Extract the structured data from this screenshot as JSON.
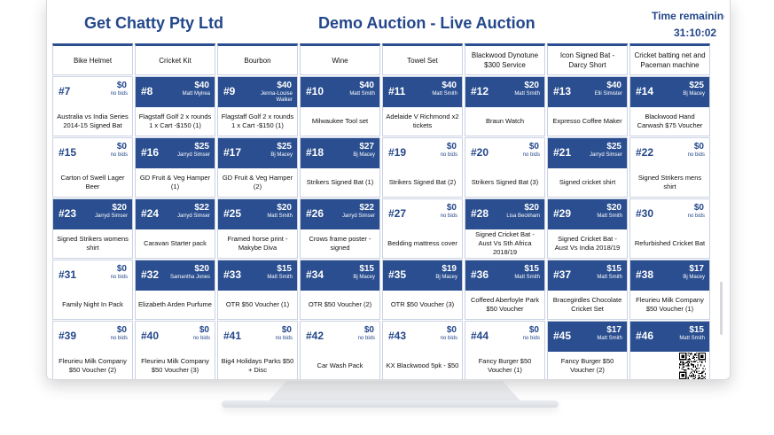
{
  "header": {
    "company": "Get Chatty Pty Ltd",
    "title": "Demo Auction - Live Auction",
    "timer_label": "Time remaining",
    "timer_value": "31:10:02"
  },
  "top_row": [
    "Bike Helmet",
    "Cricket Kit",
    "Bourbon",
    "Wine",
    "Towel Set",
    "Blackwood Dynotune $300 Service",
    "Icon Signed Bat - Darcy Short",
    "Cricket batting net and Paceman machine"
  ],
  "rows": [
    [
      {
        "lot": "#7",
        "amount": "$0",
        "bidder": "no bids",
        "name": "Australia vs India Series 2014-15 Signed Bat",
        "bid": false
      },
      {
        "lot": "#8",
        "amount": "$40",
        "bidder": "Matt Mylrea",
        "name": "Flagstaff Golf 2 x rounds 1 x Cart -$150 (1)",
        "bid": true
      },
      {
        "lot": "#9",
        "amount": "$40",
        "bidder": "Jenna-Louise Walker",
        "name": "Flagstaff Golf 2 x rounds 1 x Cart -$150 (1)",
        "bid": true
      },
      {
        "lot": "#10",
        "amount": "$40",
        "bidder": "Matt Smith",
        "name": "Milwaukee Tool set",
        "bid": true
      },
      {
        "lot": "#11",
        "amount": "$40",
        "bidder": "Matt Smith",
        "name": "Adelaide V Richmond x2 tickets",
        "bid": true
      },
      {
        "lot": "#12",
        "amount": "$20",
        "bidder": "Matt Smith",
        "name": "Braun Watch",
        "bid": true
      },
      {
        "lot": "#13",
        "amount": "$40",
        "bidder": "Elli Simister",
        "name": "Expresso Coffee Maker",
        "bid": true
      },
      {
        "lot": "#14",
        "amount": "$25",
        "bidder": "Bj Macey",
        "name": "Blackwood Hand Carwash $75 Voucher",
        "bid": true
      }
    ],
    [
      {
        "lot": "#15",
        "amount": "$0",
        "bidder": "no bids",
        "name": "Carton of Swell Lager Beer",
        "bid": false
      },
      {
        "lot": "#16",
        "amount": "$25",
        "bidder": "Jarryd Simser",
        "name": "GD Fruit & Veg Hamper (1)",
        "bid": true
      },
      {
        "lot": "#17",
        "amount": "$25",
        "bidder": "Bj Macey",
        "name": "GD Fruit & Veg Hamper (2)",
        "bid": true
      },
      {
        "lot": "#18",
        "amount": "$27",
        "bidder": "Bj Macey",
        "name": "Strikers Signed Bat (1)",
        "bid": true
      },
      {
        "lot": "#19",
        "amount": "$0",
        "bidder": "no bids",
        "name": "Strikers Signed Bat (2)",
        "bid": false
      },
      {
        "lot": "#20",
        "amount": "$0",
        "bidder": "no bids",
        "name": "Strikers Signed Bat (3)",
        "bid": false
      },
      {
        "lot": "#21",
        "amount": "$25",
        "bidder": "Jarryd Simser",
        "name": "Signed cricket shirt",
        "bid": true
      },
      {
        "lot": "#22",
        "amount": "$0",
        "bidder": "no bids",
        "name": "Signed Strikers mens shirt",
        "bid": false
      }
    ],
    [
      {
        "lot": "#23",
        "amount": "$20",
        "bidder": "Jarryd Simser",
        "name": "Signed Strikers womens shirt",
        "bid": true
      },
      {
        "lot": "#24",
        "amount": "$22",
        "bidder": "Jarryd Simser",
        "name": "Caravan Starter pack",
        "bid": true
      },
      {
        "lot": "#25",
        "amount": "$20",
        "bidder": "Matt Smith",
        "name": "Framed horse print - Makybe Diva",
        "bid": true
      },
      {
        "lot": "#26",
        "amount": "$22",
        "bidder": "Jarryd Simser",
        "name": "Crows frame poster - signed",
        "bid": true
      },
      {
        "lot": "#27",
        "amount": "$0",
        "bidder": "no bids",
        "name": "Bedding mattress cover",
        "bid": false
      },
      {
        "lot": "#28",
        "amount": "$20",
        "bidder": "Lisa Beckham",
        "name": "Signed Cricket Bat - Aust Vs Sth Africa 2018/19",
        "bid": true
      },
      {
        "lot": "#29",
        "amount": "$20",
        "bidder": "Matt Smith",
        "name": "Signed Cricket Bat - Aust Vs India 2018/19",
        "bid": true
      },
      {
        "lot": "#30",
        "amount": "$0",
        "bidder": "no bids",
        "name": "Refurbished Cricket Bat",
        "bid": false
      }
    ],
    [
      {
        "lot": "#31",
        "amount": "$0",
        "bidder": "no bids",
        "name": "Family Night In Pack",
        "bid": false
      },
      {
        "lot": "#32",
        "amount": "$20",
        "bidder": "Samantha Jones",
        "name": "Elizabeth Arden Purfume",
        "bid": true
      },
      {
        "lot": "#33",
        "amount": "$15",
        "bidder": "Matt Smith",
        "name": "OTR $50 Voucher (1)",
        "bid": true
      },
      {
        "lot": "#34",
        "amount": "$15",
        "bidder": "Bj Macey",
        "name": "OTR $50 Voucher (2)",
        "bid": true
      },
      {
        "lot": "#35",
        "amount": "$19",
        "bidder": "Bj Macey",
        "name": "OTR $50 Voucher (3)",
        "bid": true
      },
      {
        "lot": "#36",
        "amount": "$15",
        "bidder": "Matt Smith",
        "name": "Coffeed Aberfoyle Park $50 Voucher",
        "bid": true
      },
      {
        "lot": "#37",
        "amount": "$15",
        "bidder": "Matt Smith",
        "name": "Bracegirdles Chocolate Cricket Set",
        "bid": true
      },
      {
        "lot": "#38",
        "amount": "$17",
        "bidder": "Bj Macey",
        "name": "Fleurieu Milk Company $50 Voucher (1)",
        "bid": true
      }
    ],
    [
      {
        "lot": "#39",
        "amount": "$0",
        "bidder": "no bids",
        "name": "Fleurieu Milk Company $50 Voucher (2)",
        "bid": false
      },
      {
        "lot": "#40",
        "amount": "$0",
        "bidder": "no bids",
        "name": "Fleurieu Milk Company $50 Voucher (3)",
        "bid": false
      },
      {
        "lot": "#41",
        "amount": "$0",
        "bidder": "no bids",
        "name": "Big4 Holidays Parks $50 + Disc",
        "bid": false
      },
      {
        "lot": "#42",
        "amount": "$0",
        "bidder": "no bids",
        "name": "Car Wash Pack",
        "bid": false
      },
      {
        "lot": "#43",
        "amount": "$0",
        "bidder": "no bids",
        "name": "KX Blackwood 5pk - $50",
        "bid": false
      },
      {
        "lot": "#44",
        "amount": "$0",
        "bidder": "no bids",
        "name": "Fancy Burger $50 Voucher (1)",
        "bid": false
      },
      {
        "lot": "#45",
        "amount": "$17",
        "bidder": "Matt Smith",
        "name": "Fancy Burger $50 Voucher (2)",
        "bid": true
      },
      {
        "lot": "#46",
        "amount": "$15",
        "bidder": "Matt Smith",
        "name": "Bu",
        "bid": true
      }
    ]
  ]
}
